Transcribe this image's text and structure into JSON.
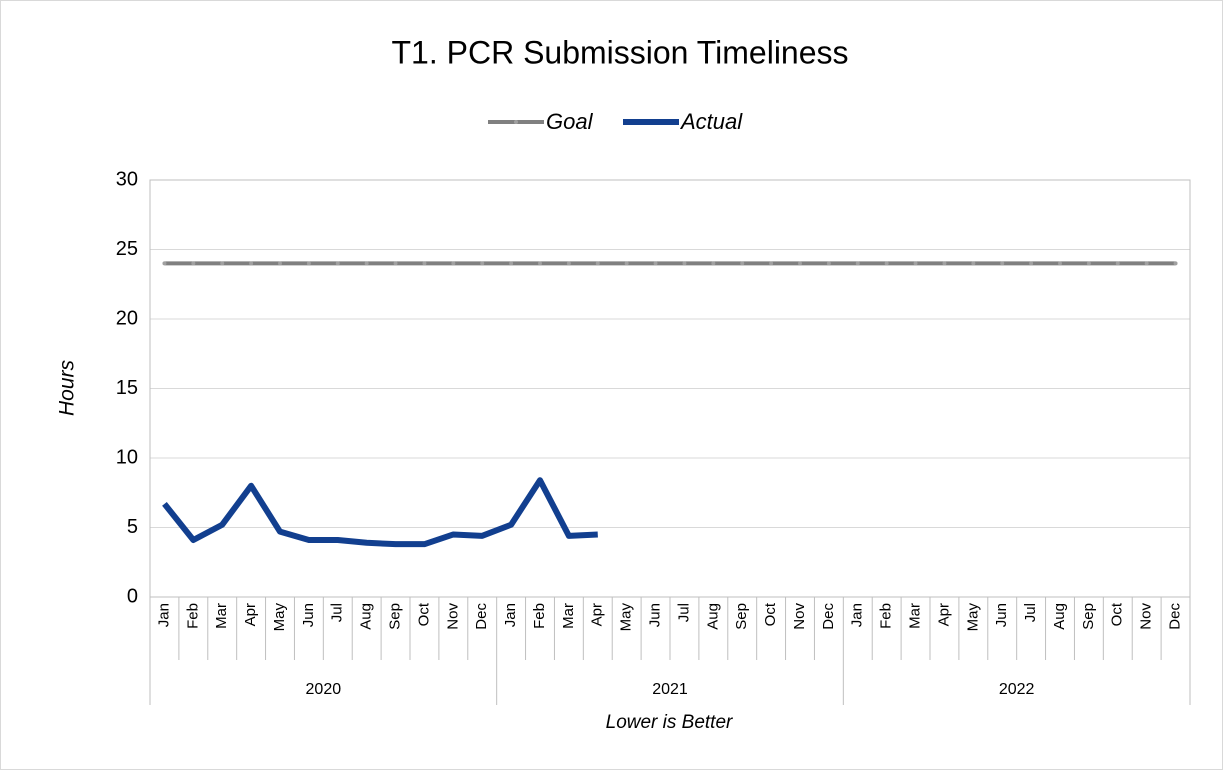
{
  "chart_data": {
    "type": "line",
    "title": "T1. PCR Submission Timeliness",
    "y_label": "Hours",
    "x_label": "Lower is Better",
    "categories": [
      "Jan",
      "Feb",
      "Mar",
      "Apr",
      "May",
      "Jun",
      "Jul",
      "Aug",
      "Sep",
      "Oct",
      "Nov",
      "Dec",
      "Jan",
      "Feb",
      "Mar",
      "Apr",
      "May",
      "Jun",
      "Jul",
      "Aug",
      "Sep",
      "Oct",
      "Nov",
      "Dec",
      "Jan",
      "Feb",
      "Mar",
      "Apr",
      "May",
      "Jun",
      "Jul",
      "Aug",
      "Sep",
      "Oct",
      "Nov",
      "Dec"
    ],
    "groups": [
      "2020",
      "2021",
      "2022"
    ],
    "series": [
      {
        "name": "Goal",
        "color": "#808080",
        "values": [
          24,
          24,
          24,
          24,
          24,
          24,
          24,
          24,
          24,
          24,
          24,
          24,
          24,
          24,
          24,
          24,
          24,
          24,
          24,
          24,
          24,
          24,
          24,
          24,
          24,
          24,
          24,
          24,
          24,
          24,
          24,
          24,
          24,
          24,
          24,
          24
        ]
      },
      {
        "name": "Actual",
        "color": "#123f8f",
        "values": [
          6.7,
          4.1,
          5.2,
          8.0,
          4.7,
          4.1,
          4.1,
          3.9,
          3.8,
          3.8,
          4.5,
          4.4,
          5.2,
          8.4,
          4.4,
          4.5,
          null,
          null,
          null,
          null,
          null,
          null,
          null,
          null,
          null,
          null,
          null,
          null,
          null,
          null,
          null,
          null,
          null,
          null,
          null,
          null
        ]
      }
    ],
    "ylim": [
      0,
      30
    ],
    "yticks": [
      0,
      5,
      10,
      15,
      20,
      25,
      30
    ],
    "grid": true,
    "legend": "top"
  }
}
